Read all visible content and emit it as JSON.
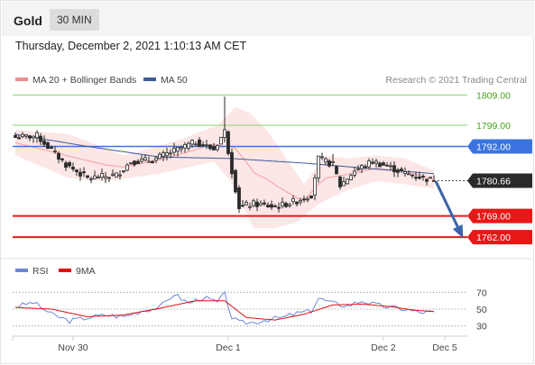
{
  "header": {
    "instrument": "Gold",
    "timeframe": "30 MIN"
  },
  "datetime": "Thursday, December 2, 2021 1:10:13 AM CET",
  "legend": {
    "ma_bands": "MA 20 + Bollinger Bands",
    "ma50": "MA 50",
    "credit": "Research © 2021 Trading Central"
  },
  "rsi_legend": {
    "rsi": "RSI",
    "ma9": "9MA"
  },
  "colors": {
    "bands": "#f28c8c",
    "ma50": "#3c5a9a",
    "rsi": "#6b86d6",
    "rsi_ma": "#e01010",
    "up": "#2a2a2a",
    "down": "#2a2a2a",
    "green_level": "#8fcf6f",
    "blue_level": "#3b74e0",
    "red_level": "#e81818",
    "arrow": "#3c64a8"
  },
  "chart_data": [
    {
      "type": "candlestick",
      "title": "Gold 30 MIN",
      "ylim": [
        1755.5,
        1811.5
      ],
      "x_ticks": [
        {
          "index": 16,
          "label": "Nov 30"
        },
        {
          "index": 59,
          "label": "Dec 1"
        },
        {
          "index": 102,
          "label": "Dec 2"
        },
        {
          "index": 119,
          "label": "Dec 5"
        }
      ],
      "levels": [
        {
          "name": "resistance-2",
          "value": 1809.0,
          "label": "1809.00",
          "style": "green"
        },
        {
          "name": "resistance-1",
          "value": 1799.0,
          "label": "1799.00",
          "style": "green"
        },
        {
          "name": "pivot",
          "value": 1792.0,
          "label": "1792.00",
          "style": "blue"
        },
        {
          "name": "support-1",
          "value": 1769.0,
          "label": "1769.00",
          "style": "red"
        },
        {
          "name": "support-2",
          "value": 1762.0,
          "label": "1762.00",
          "style": "red"
        }
      ],
      "last_price": {
        "value": 1780.66,
        "label": "1780.66"
      },
      "forecast_arrow": {
        "from_value": 1780.5,
        "to_value": 1762.5
      },
      "key_closes": [
        {
          "index": 0,
          "close": 1795.0
        },
        {
          "index": 6,
          "close": 1795.5
        },
        {
          "index": 14,
          "close": 1786.0
        },
        {
          "index": 20,
          "close": 1781.5
        },
        {
          "index": 28,
          "close": 1782.5
        },
        {
          "index": 32,
          "close": 1787.0
        },
        {
          "index": 38,
          "close": 1787.5
        },
        {
          "index": 45,
          "close": 1791.0
        },
        {
          "index": 50,
          "close": 1793.5
        },
        {
          "index": 55,
          "close": 1791.0
        },
        {
          "index": 58,
          "close": 1797.0
        },
        {
          "index": 60,
          "close": 1784.0
        },
        {
          "index": 62,
          "close": 1772.0
        },
        {
          "index": 66,
          "close": 1773.0
        },
        {
          "index": 72,
          "close": 1772.0
        },
        {
          "index": 78,
          "close": 1774.0
        },
        {
          "index": 82,
          "close": 1776.0
        },
        {
          "index": 84,
          "close": 1788.0
        },
        {
          "index": 88,
          "close": 1786.0
        },
        {
          "index": 90,
          "close": 1779.0
        },
        {
          "index": 94,
          "close": 1784.0
        },
        {
          "index": 99,
          "close": 1787.0
        },
        {
          "index": 103,
          "close": 1785.5
        },
        {
          "index": 108,
          "close": 1783.0
        },
        {
          "index": 112,
          "close": 1782.0
        },
        {
          "index": 116,
          "close": 1780.66
        }
      ],
      "key_ma50": [
        {
          "index": 0,
          "value": 1796.0
        },
        {
          "index": 20,
          "value": 1792.0
        },
        {
          "index": 40,
          "value": 1788.5
        },
        {
          "index": 60,
          "value": 1788.0
        },
        {
          "index": 80,
          "value": 1786.5
        },
        {
          "index": 100,
          "value": 1784.5
        },
        {
          "index": 116,
          "value": 1783.0
        }
      ],
      "key_bb_upper": [
        {
          "index": 0,
          "value": 1797.5
        },
        {
          "index": 15,
          "value": 1796.0
        },
        {
          "index": 30,
          "value": 1789.0
        },
        {
          "index": 45,
          "value": 1794.0
        },
        {
          "index": 56,
          "value": 1799.0
        },
        {
          "index": 61,
          "value": 1805.0
        },
        {
          "index": 65,
          "value": 1803.0
        },
        {
          "index": 70,
          "value": 1797.0
        },
        {
          "index": 74,
          "value": 1790.0
        },
        {
          "index": 80,
          "value": 1779.5
        },
        {
          "index": 86,
          "value": 1789.0
        },
        {
          "index": 92,
          "value": 1788.0
        },
        {
          "index": 100,
          "value": 1789.0
        },
        {
          "index": 108,
          "value": 1788.0
        },
        {
          "index": 116,
          "value": 1784.0
        }
      ],
      "key_bb_lower": [
        {
          "index": 0,
          "value": 1789.0
        },
        {
          "index": 15,
          "value": 1781.5
        },
        {
          "index": 25,
          "value": 1780.5
        },
        {
          "index": 40,
          "value": 1783.0
        },
        {
          "index": 55,
          "value": 1787.0
        },
        {
          "index": 60,
          "value": 1780.0
        },
        {
          "index": 66,
          "value": 1765.0
        },
        {
          "index": 72,
          "value": 1765.0
        },
        {
          "index": 78,
          "value": 1767.0
        },
        {
          "index": 84,
          "value": 1773.0
        },
        {
          "index": 92,
          "value": 1777.5
        },
        {
          "index": 100,
          "value": 1780.5
        },
        {
          "index": 108,
          "value": 1779.5
        },
        {
          "index": 116,
          "value": 1778.0
        }
      ]
    },
    {
      "type": "line",
      "title": "RSI",
      "ylim": [
        20,
        80
      ],
      "y_ticks": [
        70,
        50,
        30
      ],
      "series": [
        {
          "name": "RSI",
          "key_values": [
            {
              "index": 0,
              "value": 53
            },
            {
              "index": 5,
              "value": 58
            },
            {
              "index": 10,
              "value": 44
            },
            {
              "index": 15,
              "value": 36
            },
            {
              "index": 20,
              "value": 40
            },
            {
              "index": 25,
              "value": 43
            },
            {
              "index": 30,
              "value": 41
            },
            {
              "index": 35,
              "value": 48
            },
            {
              "index": 40,
              "value": 52
            },
            {
              "index": 44,
              "value": 68
            },
            {
              "index": 48,
              "value": 57
            },
            {
              "index": 52,
              "value": 64
            },
            {
              "index": 56,
              "value": 58
            },
            {
              "index": 58,
              "value": 68
            },
            {
              "index": 60,
              "value": 40
            },
            {
              "index": 62,
              "value": 34
            },
            {
              "index": 66,
              "value": 34
            },
            {
              "index": 70,
              "value": 38
            },
            {
              "index": 74,
              "value": 40
            },
            {
              "index": 78,
              "value": 45
            },
            {
              "index": 82,
              "value": 48
            },
            {
              "index": 84,
              "value": 63
            },
            {
              "index": 88,
              "value": 57
            },
            {
              "index": 92,
              "value": 54
            },
            {
              "index": 96,
              "value": 60
            },
            {
              "index": 100,
              "value": 55
            },
            {
              "index": 104,
              "value": 52
            },
            {
              "index": 108,
              "value": 50
            },
            {
              "index": 112,
              "value": 46
            },
            {
              "index": 116,
              "value": 47
            }
          ]
        },
        {
          "name": "9MA",
          "key_values": [
            {
              "index": 0,
              "value": 52
            },
            {
              "index": 10,
              "value": 50
            },
            {
              "index": 20,
              "value": 41
            },
            {
              "index": 30,
              "value": 43
            },
            {
              "index": 40,
              "value": 51
            },
            {
              "index": 50,
              "value": 60
            },
            {
              "index": 58,
              "value": 60
            },
            {
              "index": 64,
              "value": 40
            },
            {
              "index": 72,
              "value": 37
            },
            {
              "index": 80,
              "value": 44
            },
            {
              "index": 88,
              "value": 55
            },
            {
              "index": 96,
              "value": 56
            },
            {
              "index": 104,
              "value": 53
            },
            {
              "index": 110,
              "value": 49
            },
            {
              "index": 116,
              "value": 47
            }
          ]
        }
      ]
    }
  ]
}
